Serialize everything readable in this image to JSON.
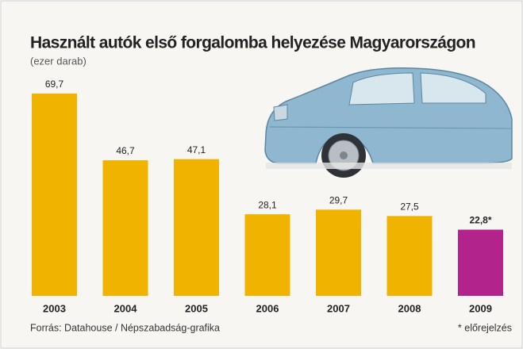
{
  "chart_data": {
    "type": "bar",
    "title": "Használt autók első forgalomba helyezése Magyarországon",
    "subtitle": "(ezer darab)",
    "categories": [
      "2003",
      "2004",
      "2005",
      "2006",
      "2007",
      "2008",
      "2009"
    ],
    "values": [
      69.7,
      46.7,
      47.1,
      28.1,
      29.7,
      27.5,
      22.8
    ],
    "value_labels": [
      "69,7",
      "46,7",
      "47,1",
      "28,1",
      "29,7",
      "27,5",
      "22,8*"
    ],
    "colors": [
      "#f0b400",
      "#f0b400",
      "#f0b400",
      "#f0b400",
      "#f0b400",
      "#f0b400",
      "#b3238c"
    ],
    "source": "Forrás: Datahouse / Népszabadság-grafika",
    "note": "* előrejelzés"
  }
}
